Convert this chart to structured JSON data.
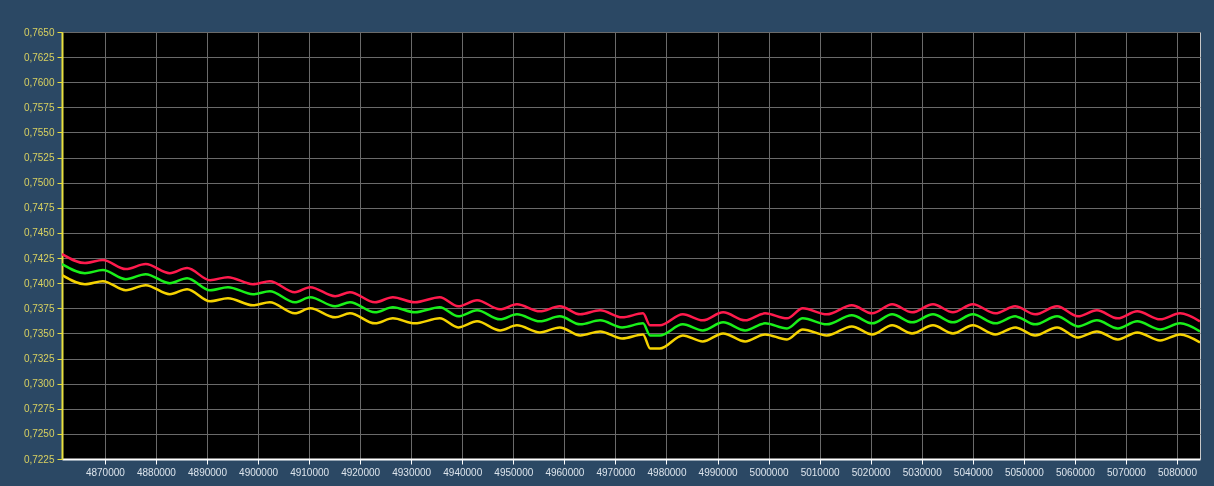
{
  "chart_data": {
    "type": "line",
    "grid": true,
    "marker": "none",
    "line_style": "solid",
    "xlim": [
      4861600,
      5084500
    ],
    "ylim": [
      0.7225,
      0.765
    ],
    "xticks": [
      4870000,
      4880000,
      4890000,
      4900000,
      4910000,
      4920000,
      4930000,
      4940000,
      4950000,
      4960000,
      4970000,
      4980000,
      4990000,
      5000000,
      5010000,
      5020000,
      5030000,
      5040000,
      5050000,
      5060000,
      5070000,
      5080000
    ],
    "yticks": [
      {
        "value": 0.7225,
        "label": "0,7225"
      },
      {
        "value": 0.725,
        "label": "0,7250"
      },
      {
        "value": 0.7275,
        "label": "0,7275"
      },
      {
        "value": 0.73,
        "label": "0,7300"
      },
      {
        "value": 0.7325,
        "label": "0,7325"
      },
      {
        "value": 0.735,
        "label": "0,7350"
      },
      {
        "value": 0.7375,
        "label": "0,7375"
      },
      {
        "value": 0.74,
        "label": "0,7400"
      },
      {
        "value": 0.7425,
        "label": "0,7425"
      },
      {
        "value": 0.745,
        "label": "0,7450"
      },
      {
        "value": 0.7475,
        "label": "0,7475"
      },
      {
        "value": 0.75,
        "label": "0,7500"
      },
      {
        "value": 0.7525,
        "label": "0,7525"
      },
      {
        "value": 0.755,
        "label": "0,7550"
      },
      {
        "value": 0.7575,
        "label": "0,7575"
      },
      {
        "value": 0.76,
        "label": "0,7600"
      },
      {
        "value": 0.7625,
        "label": "0,7625"
      },
      {
        "value": 0.765,
        "label": "0,7650"
      }
    ],
    "x": [
      4861600,
      4866100,
      4869600,
      4874100,
      4878000,
      4882700,
      4886100,
      4890600,
      4894100,
      4899000,
      4902300,
      4907200,
      4910200,
      4915100,
      4918000,
      4922900,
      4926400,
      4930700,
      4935600,
      4939200,
      4942900,
      4947400,
      4950700,
      4955200,
      4959100,
      4963100,
      4967000,
      4971300,
      4975400,
      4976800,
      4978700,
      4983200,
      4987100,
      4991100,
      4995400,
      4999300,
      5003600,
      5006700,
      5011400,
      5016300,
      5020300,
      5024200,
      5028100,
      5032200,
      5036100,
      5040000,
      5044400,
      5048300,
      5052200,
      5056500,
      5060600,
      5064300,
      5068400,
      5072200,
      5076700,
      5080600,
      5084500
    ],
    "series": [
      {
        "color": "#ff1a4d",
        "values": [
          0.7429,
          0.742,
          0.7423,
          0.7414,
          0.7419,
          0.741,
          0.7415,
          0.7403,
          0.7406,
          0.7399,
          0.7402,
          0.7391,
          0.7396,
          0.7387,
          0.7391,
          0.7381,
          0.7386,
          0.7381,
          0.7386,
          0.7377,
          0.7383,
          0.7374,
          0.7379,
          0.7372,
          0.7377,
          0.7369,
          0.7373,
          0.7366,
          0.737,
          0.7358,
          0.7358,
          0.7369,
          0.7363,
          0.7371,
          0.7363,
          0.737,
          0.7365,
          0.7375,
          0.7369,
          0.7378,
          0.737,
          0.7379,
          0.7371,
          0.7379,
          0.7371,
          0.7379,
          0.737,
          0.7377,
          0.7369,
          0.7377,
          0.7367,
          0.7373,
          0.7365,
          0.7372,
          0.7364,
          0.737,
          0.7362
        ]
      },
      {
        "color": "#19f019",
        "values": [
          0.7419,
          0.741,
          0.7413,
          0.7404,
          0.7409,
          0.74,
          0.7405,
          0.7393,
          0.7396,
          0.7389,
          0.7392,
          0.7381,
          0.7386,
          0.7377,
          0.7381,
          0.7371,
          0.7376,
          0.7371,
          0.7376,
          0.7367,
          0.7373,
          0.7364,
          0.7369,
          0.7362,
          0.7367,
          0.7359,
          0.7363,
          0.7356,
          0.736,
          0.7348,
          0.7348,
          0.7359,
          0.7353,
          0.7361,
          0.7353,
          0.736,
          0.7355,
          0.7365,
          0.7359,
          0.7368,
          0.736,
          0.7369,
          0.7361,
          0.7369,
          0.7361,
          0.7369,
          0.736,
          0.7367,
          0.7359,
          0.7367,
          0.7357,
          0.7363,
          0.7355,
          0.7362,
          0.7354,
          0.736,
          0.7352
        ]
      },
      {
        "color": "#f5d200",
        "values": [
          0.7408,
          0.7399,
          0.7402,
          0.7393,
          0.7398,
          0.7389,
          0.7394,
          0.7382,
          0.7385,
          0.7378,
          0.7381,
          0.737,
          0.7375,
          0.7366,
          0.737,
          0.736,
          0.7365,
          0.736,
          0.7365,
          0.7356,
          0.7362,
          0.7353,
          0.7358,
          0.7351,
          0.7356,
          0.7348,
          0.7352,
          0.7345,
          0.7349,
          0.7335,
          0.7335,
          0.7348,
          0.7342,
          0.735,
          0.7342,
          0.7349,
          0.7344,
          0.7354,
          0.7348,
          0.7357,
          0.7349,
          0.7358,
          0.735,
          0.7358,
          0.735,
          0.7358,
          0.7349,
          0.7356,
          0.7348,
          0.7356,
          0.7346,
          0.7352,
          0.7344,
          0.7351,
          0.7343,
          0.7349,
          0.7341
        ]
      }
    ]
  }
}
